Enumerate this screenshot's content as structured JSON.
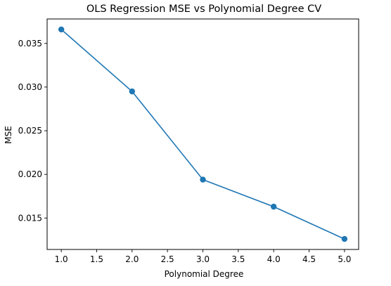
{
  "chart_data": {
    "type": "line",
    "title": "OLS Regression MSE vs Polynomial Degree CV",
    "xlabel": "Polynomial Degree",
    "ylabel": "MSE",
    "x": [
      1.0,
      2.0,
      3.0,
      4.0,
      5.0
    ],
    "series": [
      {
        "values": [
          0.0366,
          0.0295,
          0.0194,
          0.0163,
          0.0126
        ]
      }
    ],
    "xlim": [
      0.8,
      5.2
    ],
    "ylim": [
      0.0114,
      0.0378
    ],
    "xticks": [
      1.0,
      1.5,
      2.0,
      2.5,
      3.0,
      3.5,
      4.0,
      4.5,
      5.0
    ],
    "xtick_labels": [
      "1.0",
      "1.5",
      "2.0",
      "2.5",
      "3.0",
      "3.5",
      "4.0",
      "4.5",
      "5.0"
    ],
    "yticks": [
      0.015,
      0.02,
      0.025,
      0.03,
      0.035
    ],
    "ytick_labels": [
      "0.015",
      "0.020",
      "0.025",
      "0.030",
      "0.035"
    ],
    "grid": false,
    "marker": "circle",
    "colors": {
      "series": "#1f77b4",
      "axes": "#000000",
      "background": "#ffffff"
    }
  }
}
